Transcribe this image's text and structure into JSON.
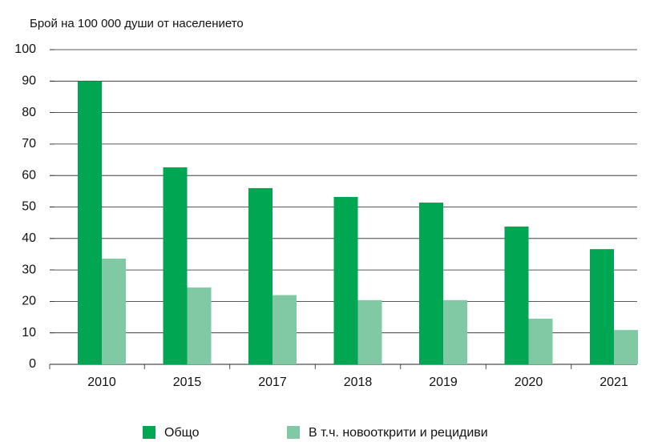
{
  "chart_data": {
    "type": "bar",
    "title": "Брой на 100 000 души от населението",
    "categories": [
      "2010",
      "2015",
      "2017",
      "2018",
      "2019",
      "2020",
      "2021"
    ],
    "series": [
      {
        "name": "Общо",
        "color": "#00a651",
        "values": [
          90,
          62.6,
          56,
          53.2,
          51.4,
          43.8,
          36.6
        ]
      },
      {
        "name": "В т.ч. новооткрити и рецидиви",
        "color": "#80c9a4",
        "values": [
          33.6,
          24.4,
          22,
          20.4,
          20.4,
          14.5,
          10.9
        ]
      }
    ],
    "ylim": [
      0,
      100
    ],
    "yticks": [
      0,
      10,
      20,
      30,
      40,
      50,
      60,
      70,
      80,
      90,
      100
    ],
    "grid": true
  }
}
